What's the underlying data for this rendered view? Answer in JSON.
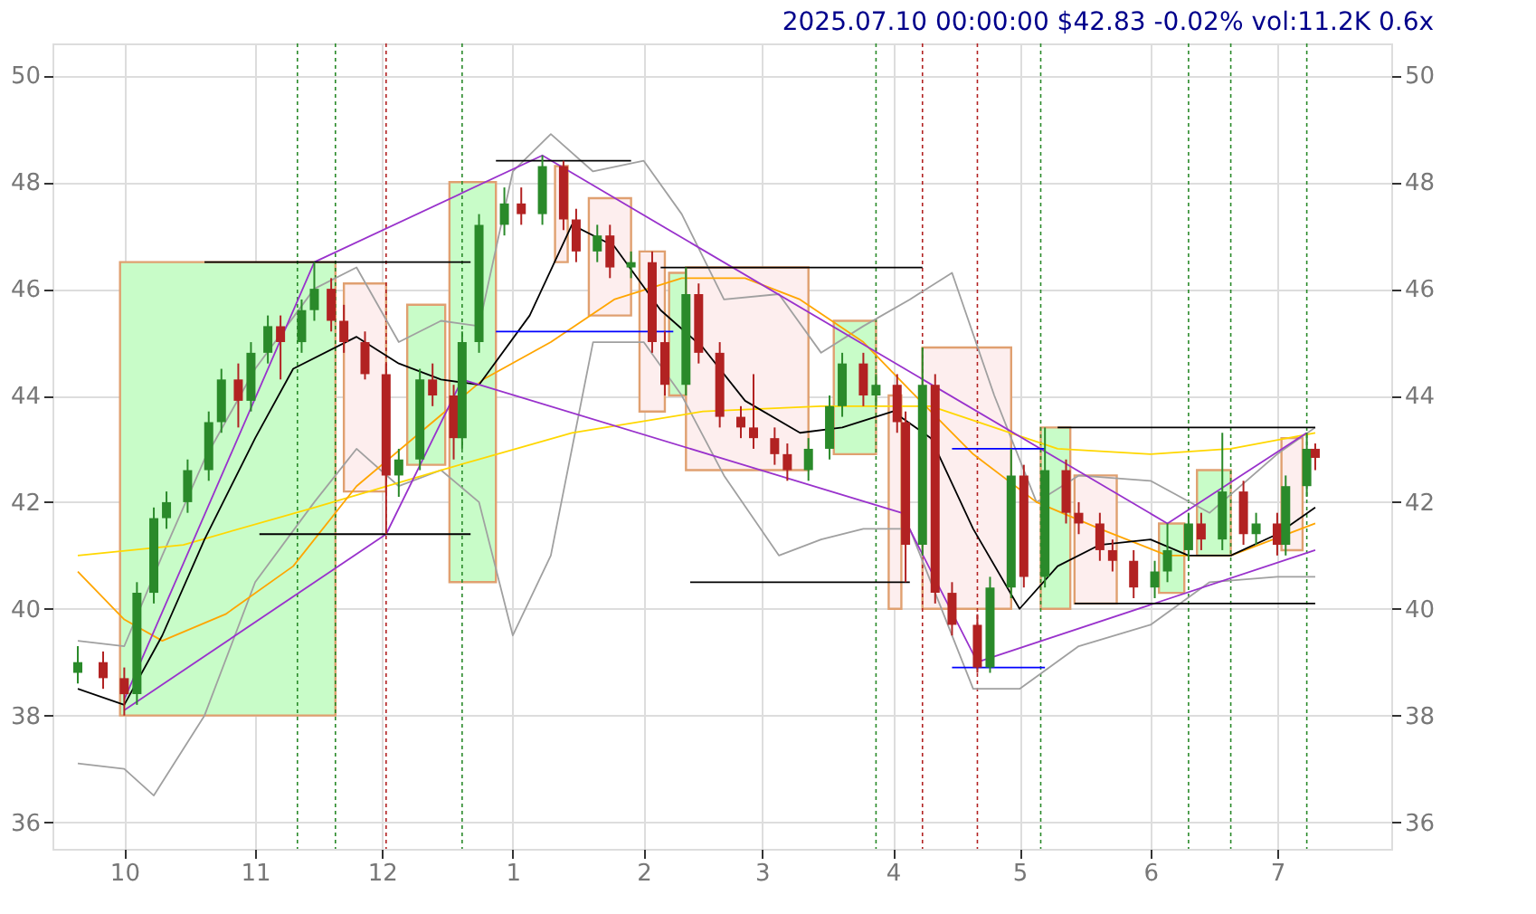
{
  "chart_data": {
    "type": "candlestick",
    "title": "2025.07.10 00:00:00 $42.83 -0.02% vol:11.2K 0.6x",
    "x": [
      "2024-09-20",
      "2024-09-26",
      "2024-10-01",
      "2024-10-04",
      "2024-10-08",
      "2024-10-11",
      "2024-10-16",
      "2024-10-21",
      "2024-10-24",
      "2024-10-28",
      "2024-10-31",
      "2024-11-04",
      "2024-11-07",
      "2024-11-12",
      "2024-11-15",
      "2024-11-19",
      "2024-11-22",
      "2024-11-27",
      "2024-12-02",
      "2024-12-05",
      "2024-12-10",
      "2024-12-13",
      "2024-12-18",
      "2024-12-20",
      "2024-12-24",
      "2024-12-30",
      "2025-01-03",
      "2025-01-08",
      "2025-01-13",
      "2025-01-16",
      "2025-01-21",
      "2025-01-24",
      "2025-01-29",
      "2025-02-03",
      "2025-02-06",
      "2025-02-11",
      "2025-02-14",
      "2025-02-19",
      "2025-02-24",
      "2025-02-27",
      "2025-03-04",
      "2025-03-07",
      "2025-03-12",
      "2025-03-17",
      "2025-03-20",
      "2025-03-25",
      "2025-03-28",
      "2025-04-02",
      "2025-04-04",
      "2025-04-08",
      "2025-04-11",
      "2025-04-15",
      "2025-04-21",
      "2025-04-24",
      "2025-04-29",
      "2025-05-02",
      "2025-05-07",
      "2025-05-12",
      "2025-05-15",
      "2025-05-20",
      "2025-05-23",
      "2025-05-28",
      "2025-06-02",
      "2025-06-05",
      "2025-06-10",
      "2025-06-13",
      "2025-06-18",
      "2025-06-23",
      "2025-06-26",
      "2025-07-01",
      "2025-07-03",
      "2025-07-08",
      "2025-07-10"
    ],
    "ohlc": [
      [
        38.8,
        39.3,
        38.6,
        39.0
      ],
      [
        39.0,
        39.2,
        38.5,
        38.7
      ],
      [
        38.7,
        38.9,
        38.0,
        38.4
      ],
      [
        38.4,
        40.5,
        38.2,
        40.3
      ],
      [
        40.3,
        41.9,
        40.1,
        41.7
      ],
      [
        41.7,
        42.2,
        41.5,
        42.0
      ],
      [
        42.0,
        42.8,
        41.8,
        42.6
      ],
      [
        42.6,
        43.7,
        42.4,
        43.5
      ],
      [
        43.5,
        44.5,
        43.3,
        44.3
      ],
      [
        44.3,
        44.6,
        43.4,
        43.9
      ],
      [
        43.9,
        45.0,
        43.7,
        44.8
      ],
      [
        44.8,
        45.5,
        44.6,
        45.3
      ],
      [
        45.3,
        45.5,
        44.3,
        45.0
      ],
      [
        45.0,
        45.8,
        44.8,
        45.6
      ],
      [
        45.6,
        46.5,
        45.4,
        46.0
      ],
      [
        46.0,
        46.2,
        45.2,
        45.4
      ],
      [
        45.4,
        45.7,
        44.8,
        45.0
      ],
      [
        45.0,
        45.2,
        44.3,
        44.4
      ],
      [
        44.4,
        44.6,
        41.4,
        42.5
      ],
      [
        42.5,
        43.0,
        42.1,
        42.8
      ],
      [
        42.8,
        44.5,
        42.6,
        44.3
      ],
      [
        44.3,
        44.6,
        43.8,
        44.0
      ],
      [
        44.0,
        44.2,
        42.8,
        43.2
      ],
      [
        43.2,
        45.2,
        43.0,
        45.0
      ],
      [
        45.0,
        47.4,
        44.8,
        47.2
      ],
      [
        47.2,
        47.9,
        47.0,
        47.6
      ],
      [
        47.6,
        47.9,
        47.2,
        47.4
      ],
      [
        47.4,
        48.5,
        47.2,
        48.3
      ],
      [
        48.3,
        48.4,
        47.1,
        47.3
      ],
      [
        47.3,
        47.5,
        46.5,
        46.7
      ],
      [
        46.7,
        47.2,
        46.5,
        47.0
      ],
      [
        47.0,
        47.2,
        46.2,
        46.4
      ],
      [
        46.4,
        46.7,
        46.2,
        46.5
      ],
      [
        46.5,
        46.7,
        44.8,
        45.0
      ],
      [
        45.0,
        45.2,
        44.0,
        44.2
      ],
      [
        44.2,
        46.4,
        44.0,
        45.9
      ],
      [
        45.9,
        46.1,
        44.6,
        44.8
      ],
      [
        44.8,
        45.0,
        43.4,
        43.6
      ],
      [
        43.6,
        43.8,
        43.2,
        43.4
      ],
      [
        43.4,
        44.4,
        43.0,
        43.2
      ],
      [
        43.2,
        43.4,
        42.7,
        42.9
      ],
      [
        42.9,
        43.1,
        42.4,
        42.6
      ],
      [
        42.6,
        43.2,
        42.4,
        43.0
      ],
      [
        43.0,
        44.0,
        42.8,
        43.8
      ],
      [
        43.8,
        44.8,
        43.6,
        44.6
      ],
      [
        44.6,
        44.8,
        43.8,
        44.0
      ],
      [
        44.0,
        44.4,
        43.8,
        44.2
      ],
      [
        44.2,
        44.4,
        43.3,
        43.5
      ],
      [
        43.5,
        43.7,
        40.5,
        41.2
      ],
      [
        41.2,
        44.9,
        41.0,
        44.2
      ],
      [
        44.2,
        44.4,
        40.1,
        40.3
      ],
      [
        40.3,
        40.5,
        39.5,
        39.7
      ],
      [
        39.7,
        39.9,
        38.8,
        38.9
      ],
      [
        38.9,
        40.6,
        38.8,
        40.4
      ],
      [
        40.4,
        43.0,
        40.2,
        42.5
      ],
      [
        42.5,
        42.7,
        40.4,
        40.6
      ],
      [
        40.6,
        43.4,
        40.4,
        42.6
      ],
      [
        42.6,
        42.8,
        41.6,
        41.8
      ],
      [
        41.8,
        42.0,
        41.4,
        41.6
      ],
      [
        41.6,
        41.8,
        40.9,
        41.1
      ],
      [
        41.1,
        41.3,
        40.7,
        40.9
      ],
      [
        40.9,
        41.1,
        40.2,
        40.4
      ],
      [
        40.4,
        40.9,
        40.2,
        40.7
      ],
      [
        40.7,
        41.6,
        40.5,
        41.1
      ],
      [
        41.1,
        41.8,
        40.9,
        41.6
      ],
      [
        41.6,
        41.8,
        41.1,
        41.3
      ],
      [
        41.3,
        43.3,
        41.1,
        42.2
      ],
      [
        42.2,
        42.4,
        41.2,
        41.4
      ],
      [
        41.4,
        41.8,
        41.2,
        41.6
      ],
      [
        41.6,
        41.8,
        41.0,
        41.2
      ],
      [
        41.2,
        42.5,
        41.0,
        42.3
      ],
      [
        42.3,
        43.3,
        42.1,
        43.0
      ],
      [
        43.0,
        43.1,
        42.6,
        42.83
      ]
    ],
    "colors": [
      "#2a8a2a",
      "#b22222",
      "#b22222",
      "#2a8a2a",
      "#2a8a2a",
      "#2a8a2a",
      "#2a8a2a",
      "#2a8a2a",
      "#2a8a2a",
      "#b22222",
      "#2a8a2a",
      "#2a8a2a",
      "#b22222",
      "#2a8a2a",
      "#2a8a2a",
      "#b22222",
      "#b22222",
      "#b22222",
      "#b22222",
      "#2a8a2a",
      "#2a8a2a",
      "#b22222",
      "#b22222",
      "#2a8a2a",
      "#2a8a2a",
      "#2a8a2a",
      "#b22222",
      "#2a8a2a",
      "#b22222",
      "#b22222",
      "#2a8a2a",
      "#b22222",
      "#2a8a2a",
      "#b22222",
      "#b22222",
      "#2a8a2a",
      "#b22222",
      "#b22222",
      "#b22222",
      "#b22222",
      "#b22222",
      "#b22222",
      "#2a8a2a",
      "#2a8a2a",
      "#2a8a2a",
      "#b22222",
      "#2a8a2a",
      "#b22222",
      "#b22222",
      "#2a8a2a",
      "#b22222",
      "#b22222",
      "#b22222",
      "#2a8a2a",
      "#2a8a2a",
      "#b22222",
      "#2a8a2a",
      "#b22222",
      "#b22222",
      "#b22222",
      "#b22222",
      "#b22222",
      "#2a8a2a",
      "#2a8a2a",
      "#2a8a2a",
      "#b22222",
      "#2a8a2a",
      "#b22222",
      "#2a8a2a",
      "#b22222",
      "#2a8a2a",
      "#2a8a2a",
      "#b22222"
    ],
    "xlim": [
      "2024-09-14",
      "2025-07-28"
    ],
    "xticks": [
      {
        "value": "2024-10-01",
        "label": "10"
      },
      {
        "value": "2024-11-01",
        "label": "11"
      },
      {
        "value": "2024-12-01",
        "label": "12"
      },
      {
        "value": "2025-01-01",
        "label": "1"
      },
      {
        "value": "2025-02-01",
        "label": "2"
      },
      {
        "value": "2025-03-01",
        "label": "3"
      },
      {
        "value": "2025-04-01",
        "label": "4"
      },
      {
        "value": "2025-05-01",
        "label": "5"
      },
      {
        "value": "2025-06-01",
        "label": "6"
      },
      {
        "value": "2025-07-01",
        "label": "7"
      }
    ],
    "ylim": [
      35.5,
      50.6
    ],
    "yticks": [
      36,
      38,
      40,
      42,
      44,
      46,
      48,
      50
    ],
    "y2lim": [
      35.5,
      50.6
    ],
    "y2ticks": [
      36,
      38,
      40,
      42,
      44,
      46,
      48,
      50
    ],
    "grid": true,
    "series": [
      {
        "type": "area",
        "color": "#c8fcc8",
        "x": [
          "2024-09-30",
          "2024-09-30",
          "2024-11-20",
          "2024-11-20"
        ],
        "values": [
          38.0,
          46.5,
          46.5,
          38.0
        ]
      },
      {
        "type": "area",
        "color": "#fdeeee",
        "x": [
          "2024-11-22",
          "2024-11-22",
          "2024-12-02",
          "2024-12-02"
        ],
        "values": [
          42.2,
          46.1,
          46.1,
          42.2
        ]
      },
      {
        "type": "area",
        "color": "#c8fcc8",
        "x": [
          "2024-12-07",
          "2024-12-07",
          "2024-12-16",
          "2024-12-16"
        ],
        "values": [
          42.7,
          45.7,
          45.7,
          42.7
        ]
      },
      {
        "type": "area",
        "color": "#c8fcc8",
        "x": [
          "2024-12-17",
          "2024-12-17",
          "2024-12-28",
          "2024-12-28"
        ],
        "values": [
          40.5,
          48.0,
          48.0,
          40.5
        ]
      },
      {
        "type": "area",
        "color": "#fdeeee",
        "x": [
          "2025-01-11",
          "2025-01-11",
          "2025-01-14",
          "2025-01-14"
        ],
        "values": [
          46.5,
          48.3,
          48.3,
          46.5
        ]
      },
      {
        "type": "area",
        "color": "#fdeeee",
        "x": [
          "2025-01-19",
          "2025-01-19",
          "2025-01-29",
          "2025-01-29"
        ],
        "values": [
          45.5,
          47.7,
          47.7,
          45.5
        ]
      },
      {
        "type": "area",
        "color": "#fdeeee",
        "x": [
          "2025-01-31",
          "2025-01-31",
          "2025-02-06",
          "2025-02-06"
        ],
        "values": [
          43.7,
          46.7,
          46.7,
          43.7
        ]
      },
      {
        "type": "area",
        "color": "#c8fcc8",
        "x": [
          "2025-02-07",
          "2025-02-07",
          "2025-02-11",
          "2025-02-11"
        ],
        "values": [
          44.0,
          46.3,
          46.3,
          44.0
        ]
      },
      {
        "type": "area",
        "color": "#fdeeee",
        "x": [
          "2025-02-11",
          "2025-02-11",
          "2025-03-12",
          "2025-03-12"
        ],
        "values": [
          42.6,
          46.4,
          46.4,
          42.6
        ]
      },
      {
        "type": "area",
        "color": "#c8fcc8",
        "x": [
          "2025-03-18",
          "2025-03-18",
          "2025-03-28",
          "2025-03-28"
        ],
        "values": [
          42.9,
          45.4,
          45.4,
          42.9
        ]
      },
      {
        "type": "area",
        "color": "#fdeeee",
        "x": [
          "2025-03-31",
          "2025-03-31",
          "2025-04-03",
          "2025-04-03"
        ],
        "values": [
          40.0,
          44.0,
          44.0,
          40.0
        ]
      },
      {
        "type": "area",
        "color": "#fdeeee",
        "x": [
          "2025-04-08",
          "2025-04-08",
          "2025-04-29",
          "2025-04-29"
        ],
        "values": [
          40.0,
          44.9,
          44.9,
          40.0
        ]
      },
      {
        "type": "area",
        "color": "#c8fcc8",
        "x": [
          "2025-05-06",
          "2025-05-06",
          "2025-05-13",
          "2025-05-13"
        ],
        "values": [
          40.0,
          43.4,
          43.4,
          40.0
        ]
      },
      {
        "type": "area",
        "color": "#fdeeee",
        "x": [
          "2025-05-14",
          "2025-05-14",
          "2025-05-24",
          "2025-05-24"
        ],
        "values": [
          40.1,
          42.5,
          42.5,
          40.1
        ]
      },
      {
        "type": "area",
        "color": "#c8fcc8",
        "x": [
          "2025-06-03",
          "2025-06-03",
          "2025-06-09",
          "2025-06-09"
        ],
        "values": [
          40.3,
          41.6,
          41.6,
          40.3
        ]
      },
      {
        "type": "area",
        "color": "#c8fcc8",
        "x": [
          "2025-06-12",
          "2025-06-12",
          "2025-06-20",
          "2025-06-20"
        ],
        "values": [
          41.0,
          42.6,
          42.6,
          41.0
        ]
      },
      {
        "type": "area",
        "color": "#fdeeee",
        "x": [
          "2025-07-02",
          "2025-07-02",
          "2025-07-07",
          "2025-07-07"
        ],
        "values": [
          41.1,
          43.2,
          43.2,
          41.1
        ]
      },
      {
        "type": "line",
        "color": "#a0a0a0",
        "x": [
          "2024-09-20",
          "2024-10-01",
          "2024-10-10",
          "2024-10-20",
          "2024-11-01",
          "2024-11-15",
          "2024-11-25",
          "2024-12-05",
          "2024-12-15",
          "2024-12-24",
          "2025-01-01",
          "2025-01-10",
          "2025-01-20",
          "2025-02-01",
          "2025-02-10",
          "2025-02-20",
          "2025-03-05",
          "2025-03-15",
          "2025-03-25",
          "2025-04-05",
          "2025-04-15",
          "2025-04-25",
          "2025-05-05",
          "2025-05-15",
          "2025-06-01",
          "2025-06-15",
          "2025-07-01",
          "2025-07-10"
        ],
        "values": [
          39.4,
          39.3,
          41.0,
          42.8,
          44.5,
          46.0,
          46.4,
          45.0,
          45.4,
          45.3,
          48.2,
          48.9,
          48.2,
          48.4,
          47.4,
          45.8,
          45.9,
          44.8,
          45.3,
          45.8,
          46.3,
          44.0,
          42.0,
          42.5,
          42.4,
          41.8,
          42.9,
          43.4
        ]
      },
      {
        "type": "line",
        "color": "#a0a0a0",
        "x": [
          "2024-09-20",
          "2024-10-01",
          "2024-10-08",
          "2024-10-20",
          "2024-11-01",
          "2024-11-15",
          "2024-11-25",
          "2024-12-05",
          "2024-12-15",
          "2024-12-24",
          "2025-01-01",
          "2025-01-10",
          "2025-01-20",
          "2025-02-01",
          "2025-02-10",
          "2025-02-20",
          "2025-03-05",
          "2025-03-15",
          "2025-03-25",
          "2025-04-05",
          "2025-04-20",
          "2025-05-01",
          "2025-05-15",
          "2025-06-01",
          "2025-06-15",
          "2025-07-01",
          "2025-07-10"
        ],
        "values": [
          37.1,
          37.0,
          36.5,
          38.0,
          40.5,
          42.0,
          43.0,
          42.3,
          42.6,
          42.0,
          39.5,
          41.0,
          45.0,
          45.0,
          44.0,
          42.5,
          41.0,
          41.3,
          41.5,
          41.5,
          38.5,
          38.5,
          39.3,
          39.7,
          40.5,
          40.6,
          40.6
        ]
      },
      {
        "type": "line",
        "color": "#ffd700",
        "x": [
          "2024-09-20",
          "2024-10-15",
          "2024-11-15",
          "2024-12-15",
          "2025-01-15",
          "2025-02-15",
          "2025-03-15",
          "2025-04-10",
          "2025-04-25",
          "2025-05-10",
          "2025-06-01",
          "2025-06-20",
          "2025-07-10"
        ],
        "values": [
          41.0,
          41.2,
          41.9,
          42.6,
          43.3,
          43.7,
          43.8,
          43.8,
          43.4,
          43.0,
          42.9,
          43.0,
          43.3
        ]
      },
      {
        "type": "line",
        "color": "#ffa500",
        "x": [
          "2024-09-20",
          "2024-10-01",
          "2024-10-10",
          "2024-10-25",
          "2024-11-10",
          "2024-11-25",
          "2024-12-10",
          "2024-12-25",
          "2025-01-10",
          "2025-01-25",
          "2025-02-10",
          "2025-02-25",
          "2025-03-10",
          "2025-03-25",
          "2025-04-05",
          "2025-04-20",
          "2025-05-05",
          "2025-05-20",
          "2025-06-05",
          "2025-06-20",
          "2025-07-10"
        ],
        "values": [
          40.7,
          39.8,
          39.4,
          39.9,
          40.8,
          42.3,
          43.3,
          44.3,
          45.0,
          45.8,
          46.2,
          46.2,
          45.8,
          45.0,
          44.1,
          42.9,
          42.0,
          41.5,
          41.0,
          41.0,
          41.6
        ]
      },
      {
        "type": "line",
        "color": "#000000",
        "x": [
          "2024-09-20",
          "2024-10-01",
          "2024-10-10",
          "2024-10-20",
          "2024-11-01",
          "2024-11-10",
          "2024-11-25",
          "2024-12-05",
          "2024-12-15",
          "2024-12-24",
          "2025-01-05",
          "2025-01-15",
          "2025-01-25",
          "2025-02-05",
          "2025-02-15",
          "2025-02-25",
          "2025-03-10",
          "2025-03-20",
          "2025-04-01",
          "2025-04-10",
          "2025-04-20",
          "2025-05-01",
          "2025-05-10",
          "2025-05-20",
          "2025-06-01",
          "2025-06-10",
          "2025-06-20",
          "2025-07-01",
          "2025-07-10"
        ],
        "values": [
          38.5,
          38.2,
          39.5,
          41.3,
          43.2,
          44.5,
          45.1,
          44.6,
          44.3,
          44.2,
          45.5,
          47.2,
          46.8,
          45.6,
          44.9,
          43.9,
          43.3,
          43.4,
          43.7,
          43.2,
          41.5,
          40.0,
          40.8,
          41.2,
          41.3,
          41.0,
          41.0,
          41.4,
          41.9
        ]
      },
      {
        "type": "line",
        "color": "#9932cc",
        "x": [
          "2024-10-01",
          "2024-11-15",
          "2025-01-08",
          "2025-06-05",
          "2025-07-08"
        ],
        "values": [
          38.3,
          46.5,
          48.5,
          41.6,
          43.3
        ]
      },
      {
        "type": "line",
        "color": "#9932cc",
        "x": [
          "2024-10-01",
          "2024-12-02",
          "2024-12-20",
          "2025-04-03",
          "2025-04-21",
          "2025-07-10"
        ],
        "values": [
          38.1,
          41.4,
          44.3,
          41.8,
          39.0,
          41.1
        ]
      },
      {
        "type": "line",
        "color": "#000000",
        "x": [
          "2024-10-20",
          "2024-12-22"
        ],
        "values": [
          46.5,
          46.5
        ]
      },
      {
        "type": "line",
        "color": "#000000",
        "x": [
          "2024-11-02",
          "2024-12-22"
        ],
        "values": [
          41.4,
          41.4
        ]
      },
      {
        "type": "line",
        "color": "#000000",
        "x": [
          "2024-12-28",
          "2025-01-29"
        ],
        "values": [
          48.4,
          48.4
        ]
      },
      {
        "type": "line",
        "color": "#0000ff",
        "x": [
          "2024-12-28",
          "2025-02-08"
        ],
        "values": [
          45.2,
          45.2
        ]
      },
      {
        "type": "line",
        "color": "#000000",
        "x": [
          "2025-02-05",
          "2025-04-08"
        ],
        "values": [
          46.4,
          46.4
        ]
      },
      {
        "type": "line",
        "color": "#000000",
        "x": [
          "2025-02-12",
          "2025-04-05"
        ],
        "values": [
          40.5,
          40.5
        ]
      },
      {
        "type": "line",
        "color": "#0000ff",
        "x": [
          "2025-04-15",
          "2025-05-07"
        ],
        "values": [
          43.0,
          43.0
        ]
      },
      {
        "type": "line",
        "color": "#0000ff",
        "x": [
          "2025-04-15",
          "2025-05-07"
        ],
        "values": [
          38.9,
          38.9
        ]
      },
      {
        "type": "line",
        "color": "#000000",
        "x": [
          "2025-05-10",
          "2025-07-10"
        ],
        "values": [
          43.4,
          43.4
        ]
      },
      {
        "type": "line",
        "color": "#000000",
        "x": [
          "2025-05-14",
          "2025-07-10"
        ],
        "values": [
          40.1,
          40.1
        ]
      }
    ],
    "ref_lines": [
      {
        "axis": "x",
        "value": "2024-11-11",
        "color": "#2a8a2a",
        "line_style": "dotted"
      },
      {
        "axis": "x",
        "value": "2024-11-20",
        "color": "#2a8a2a",
        "line_style": "dotted"
      },
      {
        "axis": "x",
        "value": "2024-12-02",
        "color": "#b22222",
        "line_style": "dotted"
      },
      {
        "axis": "x",
        "value": "2024-12-20",
        "color": "#2a8a2a",
        "line_style": "dotted"
      },
      {
        "axis": "x",
        "value": "2025-03-28",
        "color": "#2a8a2a",
        "line_style": "dotted"
      },
      {
        "axis": "x",
        "value": "2025-04-08",
        "color": "#b22222",
        "line_style": "dotted"
      },
      {
        "axis": "x",
        "value": "2025-04-21",
        "color": "#b22222",
        "line_style": "dotted"
      },
      {
        "axis": "x",
        "value": "2025-05-06",
        "color": "#2a8a2a",
        "line_style": "dotted"
      },
      {
        "axis": "x",
        "value": "2025-06-10",
        "color": "#2a8a2a",
        "line_style": "dotted"
      },
      {
        "axis": "x",
        "value": "2025-06-20",
        "color": "#2a8a2a",
        "line_style": "dotted"
      },
      {
        "axis": "x",
        "value": "2025-07-08",
        "color": "#2a8a2a",
        "line_style": "dotted"
      }
    ]
  }
}
